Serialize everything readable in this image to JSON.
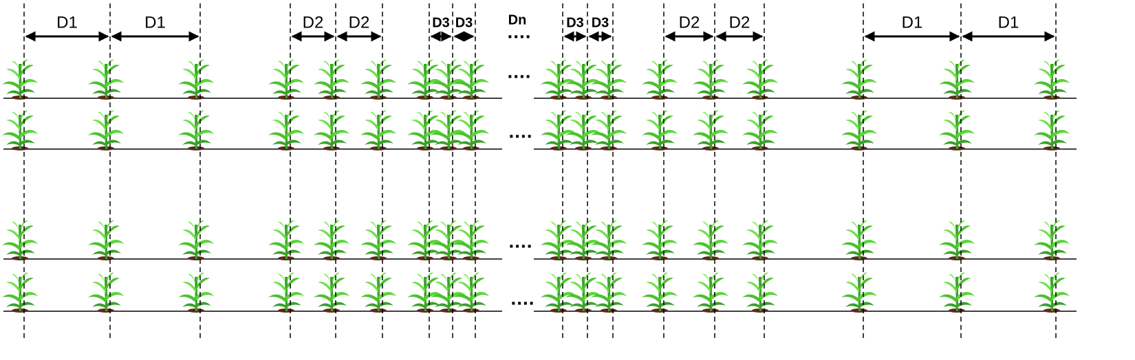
{
  "labels": [
    "D1",
    "D1",
    "D2",
    "D2",
    "D3",
    "D3",
    "D3",
    "D3",
    "D2",
    "D2",
    "D1",
    "D1"
  ],
  "dn": "Dn",
  "ellipses": [
    "....",
    "....",
    "....",
    "....",
    "...."
  ]
}
